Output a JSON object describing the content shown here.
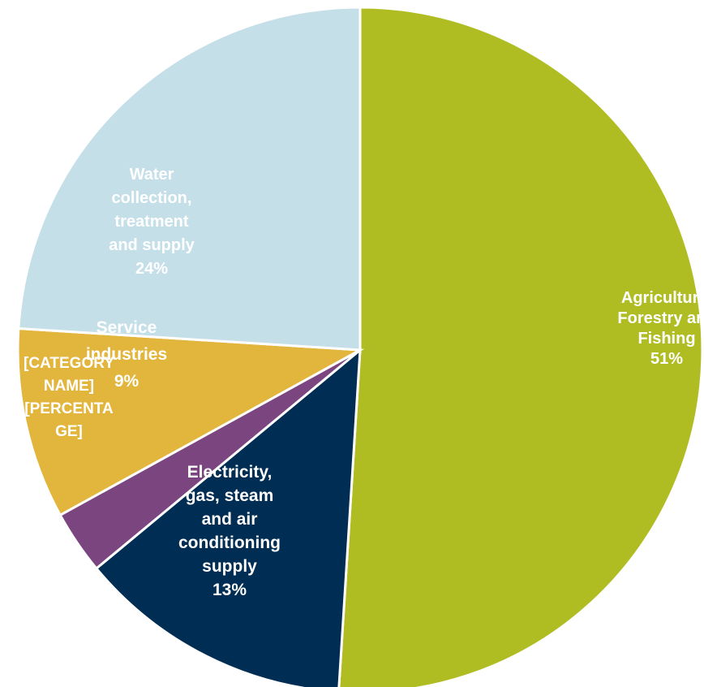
{
  "chart_data": {
    "type": "pie",
    "title": "",
    "slices": [
      {
        "name": "Agriculture, Forestry and Fishing",
        "value": 51,
        "display_label": [
          "Agriculture,",
          "Forestry and",
          "Fishing",
          "51%"
        ],
        "color": "#afbd22",
        "label_color": "#ffffff"
      },
      {
        "name": "Electricity, gas, steam and air conditioning supply",
        "value": 13,
        "display_label": [
          "Electricity,",
          "gas, steam",
          "and air",
          "conditioning",
          "supply",
          "13%"
        ],
        "color": "#002d53",
        "label_color": "#ffffff"
      },
      {
        "name": "[CATEGORY NAME]",
        "value": 3,
        "display_label": [
          "[CATEGORY",
          "NAME]",
          "[PERCENTA",
          "GE]"
        ],
        "color": "#7b4580",
        "label_color": "#ffffff"
      },
      {
        "name": "Service industries",
        "value": 9,
        "display_label": [
          "Service",
          "industries",
          "9%"
        ],
        "color": "#e2b53c",
        "label_color": "#ffffff"
      },
      {
        "name": "Water collection, treatment and supply",
        "value": 24,
        "display_label": [
          "Water",
          "collection,",
          "treatment",
          "and supply",
          "24%"
        ],
        "color": "#c5dfe9",
        "label_color": "#ffffff"
      }
    ],
    "start_angle_deg": 0,
    "direction": "clockwise",
    "legend": "none"
  }
}
